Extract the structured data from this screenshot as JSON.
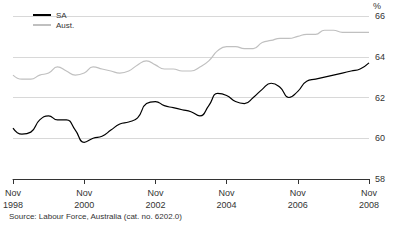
{
  "chart_data": {
    "type": "line",
    "y_label": "%",
    "source": "Source: Labour Force, Australia (cat. no. 6202.0)",
    "categories": [
      "Nov 1998",
      null,
      null,
      null,
      null,
      null,
      null,
      null,
      "Nov 2000",
      null,
      null,
      null,
      null,
      null,
      null,
      null,
      "Nov 2002",
      null,
      null,
      null,
      null,
      null,
      null,
      null,
      "Nov 2004",
      null,
      null,
      null,
      null,
      null,
      null,
      null,
      "Nov 2006",
      null,
      null,
      null,
      null,
      null,
      null,
      null,
      "Nov 2008"
    ],
    "series": [
      {
        "name": "SA",
        "color": "#000000",
        "values": [
          60.5,
          60.2,
          60.3,
          60.9,
          61.1,
          60.9,
          60.9,
          60.4,
          59.8,
          60.0,
          60.1,
          60.4,
          60.7,
          60.8,
          61.0,
          61.7,
          61.8,
          61.6,
          61.5,
          61.4,
          61.3,
          61.1,
          61.6,
          62.2,
          62.1,
          61.8,
          61.7,
          62.0,
          62.4,
          62.7,
          62.5,
          62.0,
          62.3,
          62.8,
          62.9,
          63.0,
          63.1,
          63.2,
          63.3,
          63.4,
          63.7
        ]
      },
      {
        "name": "Aust.",
        "color": "#c0c0c0",
        "values": [
          63.1,
          62.9,
          62.9,
          63.1,
          63.2,
          63.5,
          63.3,
          63.1,
          63.2,
          63.5,
          63.4,
          63.3,
          63.2,
          63.3,
          63.6,
          63.8,
          63.6,
          63.4,
          63.4,
          63.3,
          63.3,
          63.5,
          63.8,
          64.3,
          64.5,
          64.5,
          64.4,
          64.4,
          64.7,
          64.8,
          64.9,
          64.9,
          65.0,
          65.1,
          65.1,
          65.3,
          65.3,
          65.2,
          65.2,
          65.2,
          65.2
        ]
      }
    ],
    "ylim": [
      58,
      66
    ],
    "yticks": [
      58,
      60,
      62,
      64,
      66
    ],
    "grid": true,
    "legend": "top-left"
  }
}
